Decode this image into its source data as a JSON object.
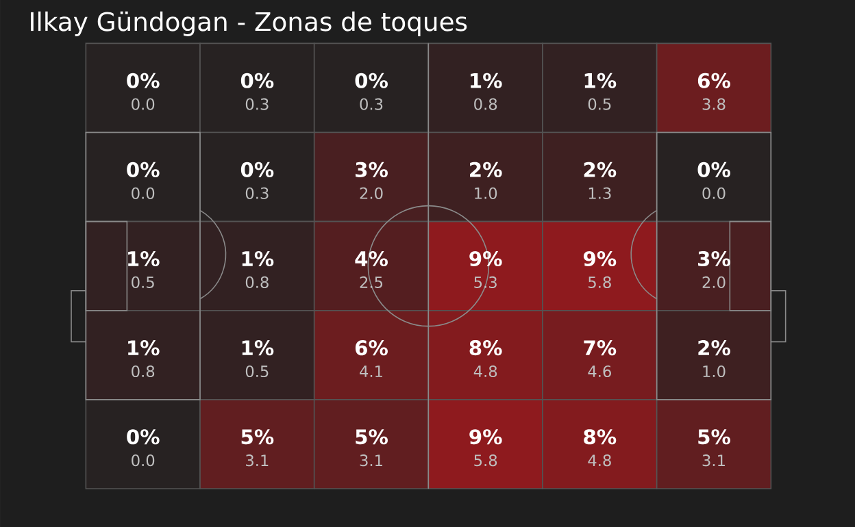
{
  "chart_data": {
    "type": "heatmap",
    "title": "Ilkay Gündogan - Zonas de toques",
    "categories": [
      null,
      null,
      null,
      null,
      null,
      null
    ],
    "y_categories": [
      null,
      null,
      null,
      null,
      null
    ],
    "cells": [
      [
        0,
        0,
        0,
        1,
        1,
        6
      ],
      [
        0,
        0,
        3,
        2,
        2,
        0
      ],
      [
        1,
        1,
        4,
        9,
        9,
        3
      ],
      [
        1,
        1,
        6,
        8,
        7,
        2
      ],
      [
        0,
        5,
        5,
        9,
        8,
        5
      ]
    ],
    "cell_labels": [
      [
        "0%",
        "0%",
        "0%",
        "1%",
        "1%",
        "6%"
      ],
      [
        "0%",
        "0%",
        "3%",
        "2%",
        "2%",
        "0%"
      ],
      [
        "1%",
        "1%",
        "4%",
        "9%",
        "9%",
        "3%"
      ],
      [
        "1%",
        "1%",
        "6%",
        "8%",
        "7%",
        "2%"
      ],
      [
        "0%",
        "5%",
        "5%",
        "9%",
        "8%",
        "5%"
      ]
    ],
    "annotations": [
      "0.0",
      "0.3",
      "0.3",
      "0.8",
      "0.5",
      "3.8",
      "0.0",
      "0.3",
      "2.0",
      "1.0",
      "1.3",
      "0.0",
      "0.5",
      "0.8",
      "2.5",
      "5.3",
      "5.8",
      "2.0",
      "0.8",
      "0.5",
      "4.1",
      "4.8",
      "4.6",
      "1.0",
      "0.0",
      "3.1",
      "3.1",
      "5.8",
      "4.8",
      "3.1"
    ]
  }
}
